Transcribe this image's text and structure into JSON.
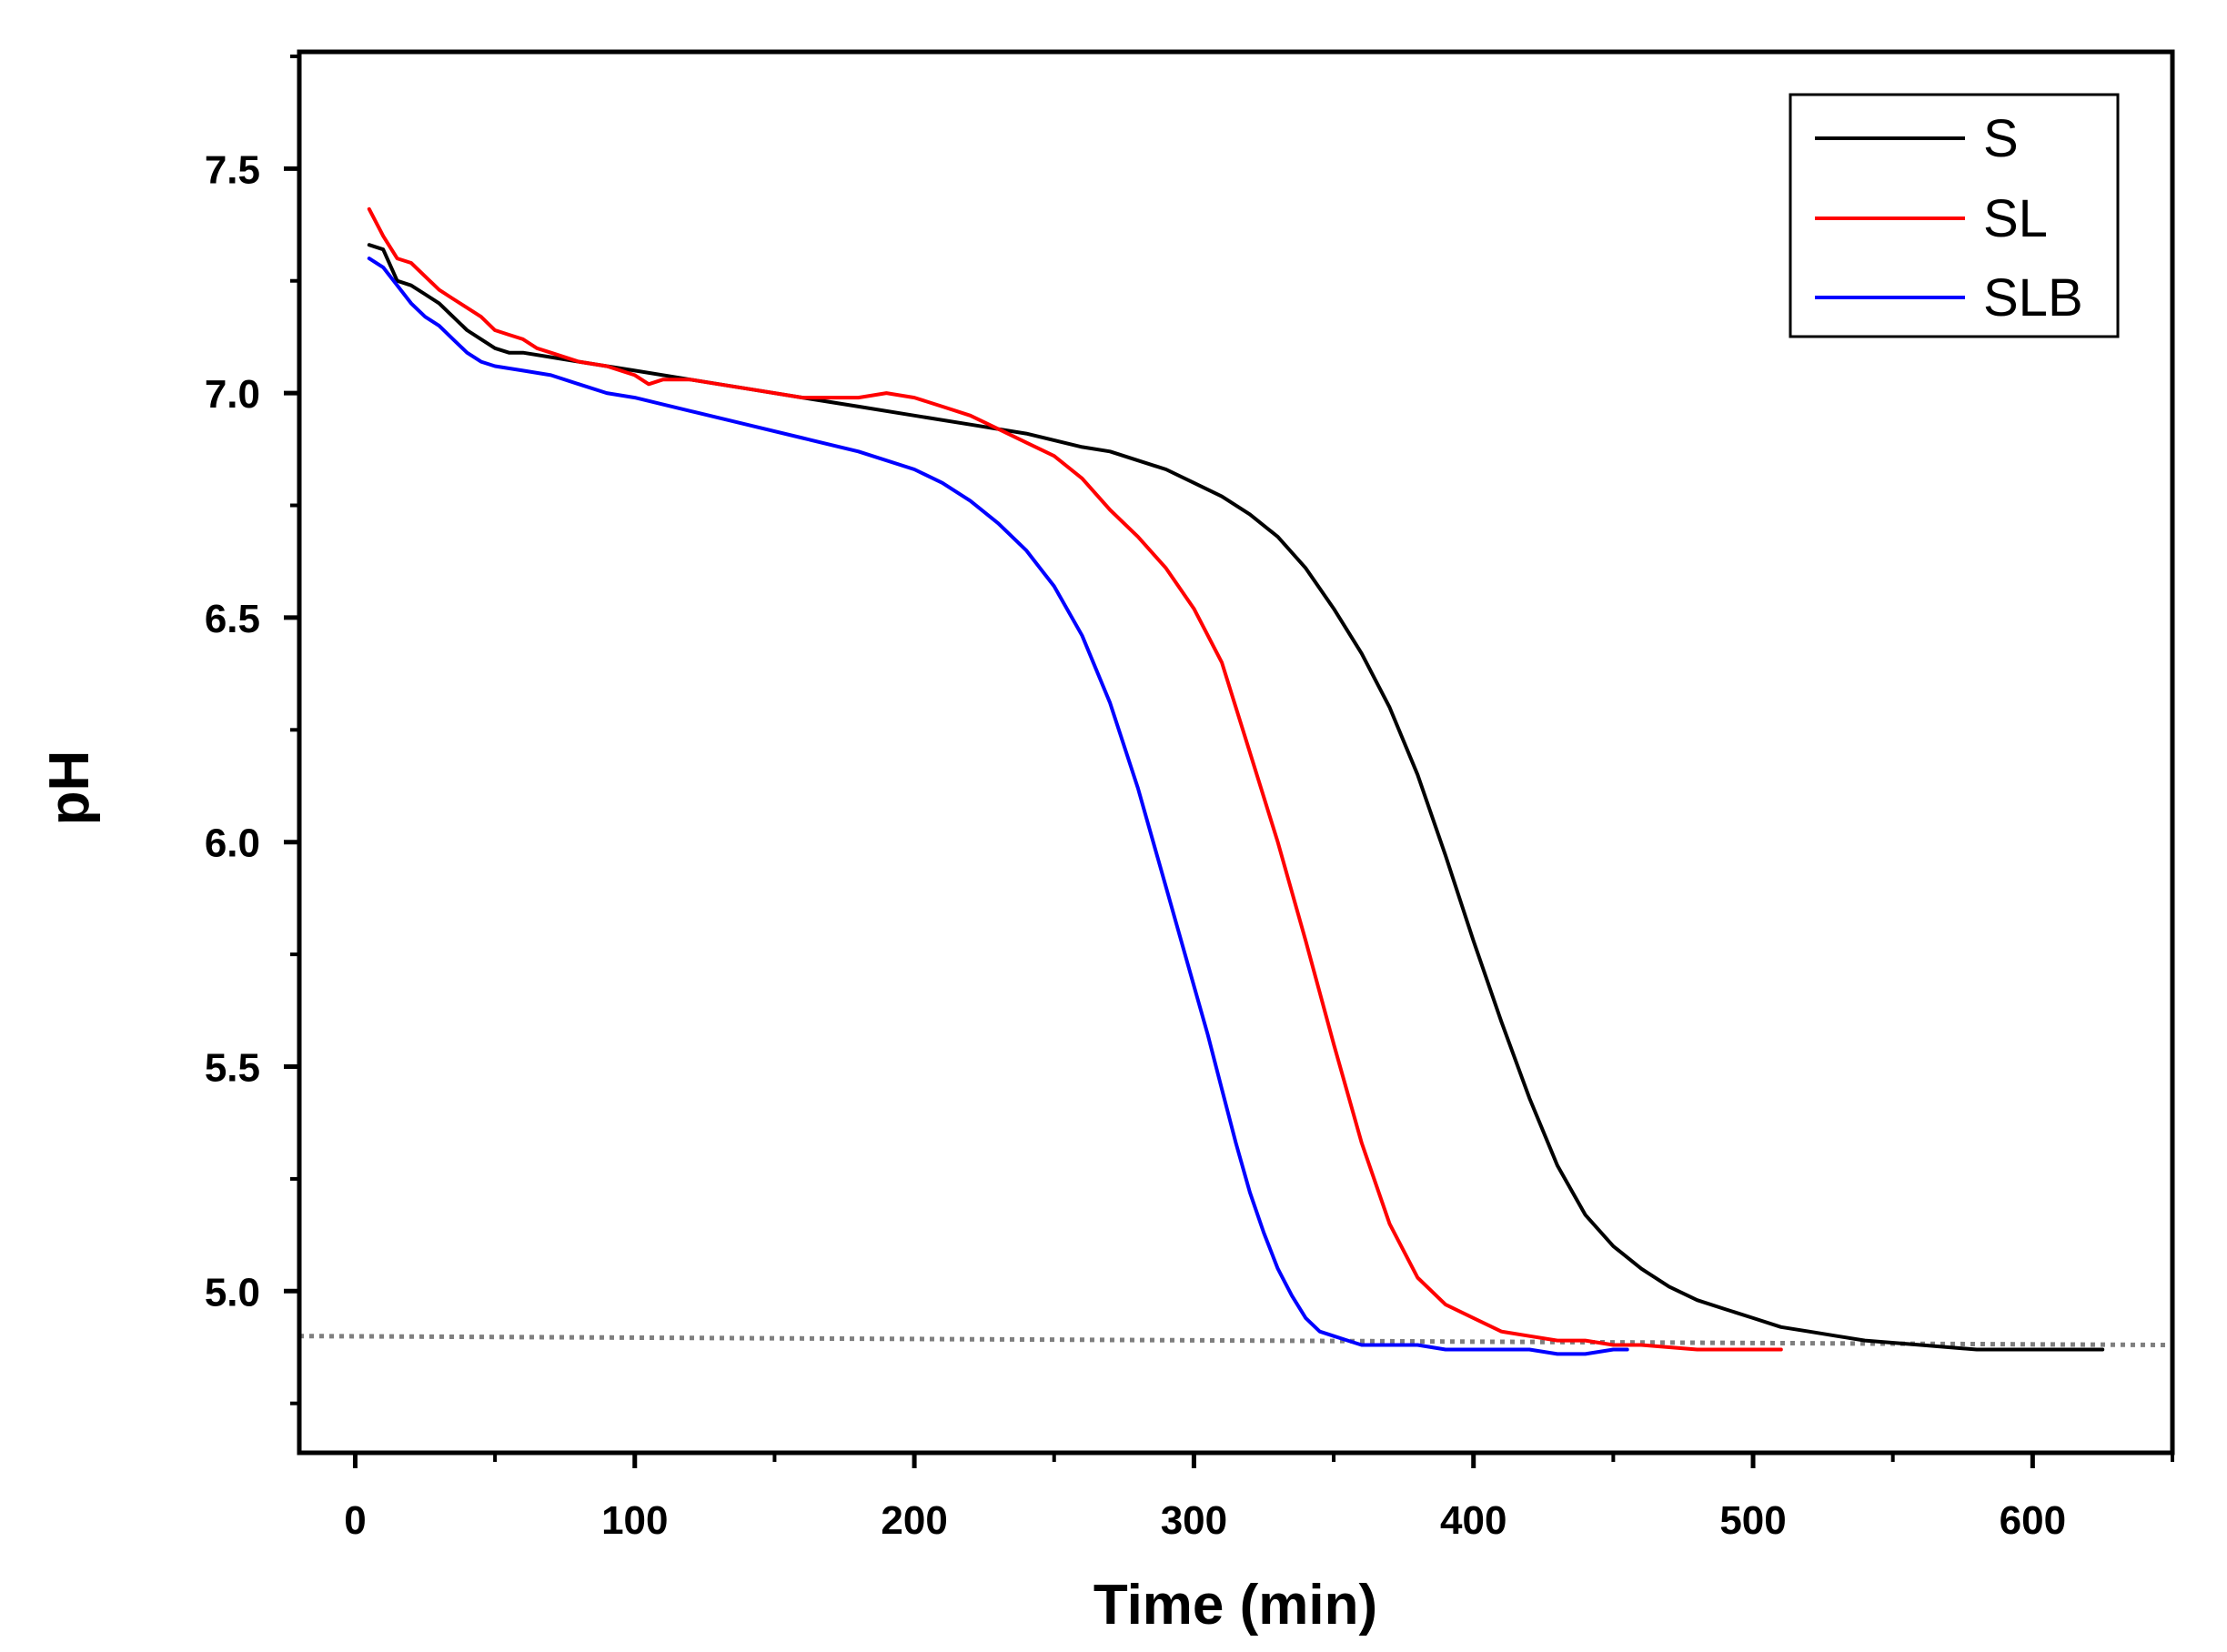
{
  "chart_data": {
    "type": "line",
    "title": "",
    "xlabel": "Time (min)",
    "ylabel": "pH",
    "xlim": [
      -20,
      650
    ],
    "ylim": [
      4.64,
      7.76
    ],
    "x_ticks": [
      0,
      100,
      200,
      300,
      400,
      500,
      600
    ],
    "x_tick_labels": [
      "0",
      "100",
      "200",
      "300",
      "400",
      "500",
      "600"
    ],
    "x_minor_ticks": [
      50,
      150,
      250,
      350,
      450,
      550,
      650
    ],
    "y_ticks": [
      5.0,
      5.5,
      6.0,
      6.5,
      7.0,
      7.5
    ],
    "y_tick_labels": [
      "5.0",
      "5.5",
      "6.0",
      "6.5",
      "7.0",
      "7.5"
    ],
    "y_minor_ticks": [
      4.75,
      5.25,
      5.75,
      6.25,
      6.75,
      7.25,
      7.75
    ],
    "legend_position": "top-right",
    "reference_line": {
      "y_start": 4.9,
      "y_end": 4.88,
      "style": "dotted",
      "color": "#7f7f7f"
    },
    "series": [
      {
        "name": "S",
        "color": "#000000",
        "x": [
          5,
          10,
          15,
          20,
          25,
          30,
          35,
          40,
          45,
          50,
          55,
          60,
          70,
          80,
          90,
          100,
          120,
          140,
          160,
          180,
          200,
          220,
          240,
          260,
          270,
          280,
          290,
          300,
          310,
          320,
          330,
          340,
          350,
          360,
          370,
          380,
          390,
          400,
          410,
          420,
          430,
          440,
          450,
          460,
          470,
          480,
          490,
          500,
          510,
          520,
          530,
          540,
          560,
          580,
          600,
          625
        ],
        "y": [
          7.33,
          7.32,
          7.25,
          7.24,
          7.22,
          7.2,
          7.17,
          7.14,
          7.12,
          7.1,
          7.09,
          7.09,
          7.08,
          7.07,
          7.06,
          7.05,
          7.03,
          7.01,
          6.99,
          6.97,
          6.95,
          6.93,
          6.91,
          6.88,
          6.87,
          6.85,
          6.83,
          6.8,
          6.77,
          6.73,
          6.68,
          6.61,
          6.52,
          6.42,
          6.3,
          6.15,
          5.97,
          5.78,
          5.6,
          5.43,
          5.28,
          5.17,
          5.1,
          5.05,
          5.01,
          4.98,
          4.96,
          4.94,
          4.92,
          4.91,
          4.9,
          4.89,
          4.88,
          4.87,
          4.87,
          4.87
        ]
      },
      {
        "name": "SL",
        "color": "#ff0000",
        "x": [
          5,
          10,
          15,
          20,
          25,
          30,
          35,
          40,
          45,
          50,
          55,
          60,
          65,
          70,
          80,
          90,
          100,
          105,
          110,
          120,
          130,
          140,
          150,
          160,
          170,
          180,
          190,
          200,
          210,
          220,
          230,
          240,
          250,
          260,
          270,
          280,
          290,
          300,
          310,
          320,
          330,
          340,
          350,
          360,
          370,
          380,
          390,
          400,
          410,
          420,
          430,
          440,
          450,
          460,
          480,
          500,
          510
        ],
        "y": [
          7.41,
          7.35,
          7.3,
          7.29,
          7.26,
          7.23,
          7.21,
          7.19,
          7.17,
          7.14,
          7.13,
          7.12,
          7.1,
          7.09,
          7.07,
          7.06,
          7.04,
          7.02,
          7.03,
          7.03,
          7.02,
          7.01,
          7.0,
          6.99,
          6.99,
          6.99,
          7.0,
          6.99,
          6.97,
          6.95,
          6.92,
          6.89,
          6.86,
          6.81,
          6.74,
          6.68,
          6.61,
          6.52,
          6.4,
          6.2,
          6.0,
          5.78,
          5.55,
          5.33,
          5.15,
          5.03,
          4.97,
          4.94,
          4.91,
          4.9,
          4.89,
          4.89,
          4.88,
          4.88,
          4.87,
          4.87,
          4.87
        ]
      },
      {
        "name": "SLB",
        "color": "#0000ff",
        "x": [
          5,
          10,
          15,
          20,
          25,
          30,
          35,
          40,
          45,
          50,
          60,
          70,
          80,
          90,
          100,
          120,
          140,
          160,
          180,
          200,
          210,
          220,
          230,
          240,
          250,
          260,
          270,
          280,
          290,
          300,
          305,
          310,
          315,
          320,
          325,
          330,
          335,
          340,
          345,
          350,
          355,
          360,
          365,
          370,
          380,
          390,
          400,
          410,
          420,
          430,
          440,
          450,
          455
        ],
        "y": [
          7.3,
          7.28,
          7.24,
          7.2,
          7.17,
          7.15,
          7.12,
          7.09,
          7.07,
          7.06,
          7.05,
          7.04,
          7.02,
          7.0,
          6.99,
          6.96,
          6.93,
          6.9,
          6.87,
          6.83,
          6.8,
          6.76,
          6.71,
          6.65,
          6.57,
          6.46,
          6.31,
          6.12,
          5.9,
          5.68,
          5.57,
          5.45,
          5.33,
          5.22,
          5.13,
          5.05,
          4.99,
          4.94,
          4.91,
          4.9,
          4.89,
          4.88,
          4.88,
          4.88,
          4.88,
          4.87,
          4.87,
          4.87,
          4.87,
          4.86,
          4.86,
          4.87,
          4.87
        ]
      }
    ]
  }
}
